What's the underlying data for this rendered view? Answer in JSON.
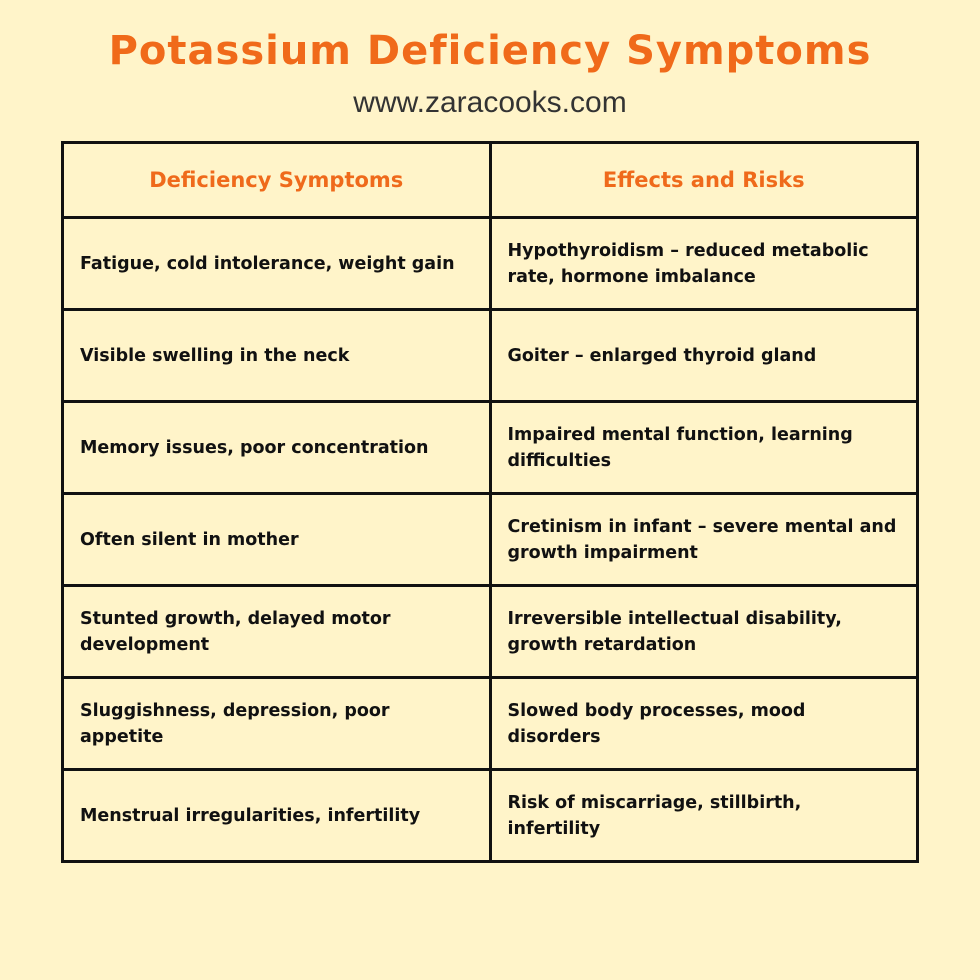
{
  "header": {
    "title": "Potassium Deficiency Symptoms",
    "subtitle": "www.zaracooks.com"
  },
  "table": {
    "columns": [
      "Deficiency Symptoms",
      "Effects and Risks"
    ],
    "rows": [
      [
        "Fatigue, cold intolerance, weight gain",
        "Hypothyroidism – reduced metabolic rate, hormone imbalance"
      ],
      [
        "Visible swelling in the neck",
        "Goiter – enlarged thyroid gland"
      ],
      [
        "Memory issues, poor concentration",
        "Impaired mental function, learning difficulties"
      ],
      [
        "Often silent in mother",
        "Cretinism in infant – severe mental and growth impairment"
      ],
      [
        "Stunted growth, delayed motor development",
        "Irreversible intellectual disability, growth retardation"
      ],
      [
        "Sluggishness, depression, poor appetite",
        "Slowed body processes, mood disorders"
      ],
      [
        "Menstrual irregularities, infertility",
        "Risk of miscarriage, stillbirth, infertility"
      ]
    ]
  }
}
